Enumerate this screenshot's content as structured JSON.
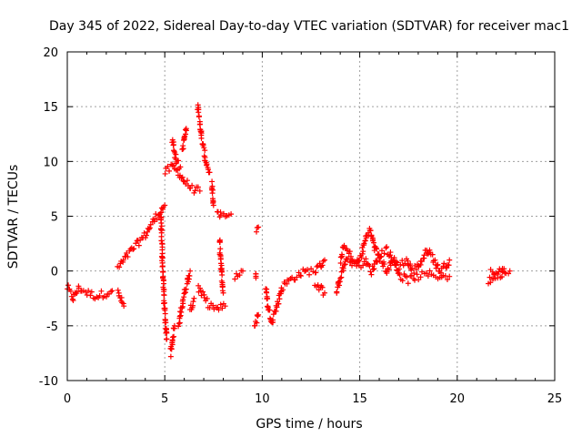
{
  "chart_data": {
    "type": "scatter",
    "title": "Day 345 of 2022, Sidereal Day-to-day VTEC variation (SDTVAR) for receiver mac1",
    "xlabel": "GPS time / hours",
    "ylabel": "SDTVAR / TECUs",
    "xlim": [
      0,
      25
    ],
    "ylim": [
      -10,
      20
    ],
    "xticks": [
      "0",
      "5",
      "10",
      "15",
      "20",
      "25"
    ],
    "yticks": [
      "-10",
      "-5",
      "0",
      "5",
      "10",
      "15",
      "20"
    ],
    "grid": true,
    "marker": "+",
    "color": "#ff0000",
    "series": [
      {
        "name": "SDTVAR",
        "segments": [
          [
            [
              0.0,
              -1.5
            ],
            [
              0.3,
              -2.5
            ],
            [
              0.6,
              -1.5
            ],
            [
              1.0,
              -2.0
            ],
            [
              1.5,
              -2.3
            ],
            [
              2.0,
              -2.0
            ],
            [
              2.3,
              -1.8
            ]
          ],
          [
            [
              2.6,
              -2.0
            ],
            [
              2.9,
              -3.2
            ]
          ],
          [
            [
              2.6,
              0.3
            ],
            [
              3.0,
              1.2
            ],
            [
              3.5,
              2.3
            ],
            [
              4.0,
              3.3
            ],
            [
              4.5,
              4.8
            ],
            [
              5.0,
              6.0
            ]
          ],
          [
            [
              5.0,
              9.0
            ],
            [
              5.4,
              9.5
            ],
            [
              5.7,
              9.0
            ],
            [
              6.0,
              8.2
            ],
            [
              6.4,
              7.5
            ],
            [
              6.8,
              7.3
            ]
          ],
          [
            [
              4.8,
              5.0
            ],
            [
              4.9,
              0.0
            ],
            [
              5.0,
              -4.0
            ],
            [
              5.1,
              -6.2
            ]
          ],
          [
            [
              5.3,
              -7.5
            ],
            [
              5.5,
              -5.0
            ]
          ],
          [
            [
              5.4,
              12.0
            ],
            [
              5.6,
              10.0
            ],
            [
              5.8,
              9.5
            ]
          ],
          [
            [
              5.9,
              11.0
            ],
            [
              6.1,
              13.0
            ]
          ],
          [
            [
              5.7,
              -5.0
            ],
            [
              6.0,
              -2.0
            ],
            [
              6.3,
              0.0
            ]
          ],
          [
            [
              6.3,
              -3.5
            ],
            [
              6.5,
              -2.5
            ]
          ],
          [
            [
              6.7,
              15.0
            ],
            [
              6.9,
              12.0
            ],
            [
              7.1,
              10.0
            ],
            [
              7.3,
              9.0
            ]
          ],
          [
            [
              6.7,
              -1.5
            ],
            [
              7.2,
              -3.0
            ],
            [
              7.7,
              -3.5
            ],
            [
              8.1,
              -3.2
            ]
          ],
          [
            [
              7.4,
              8.0
            ],
            [
              7.5,
              6.0
            ]
          ],
          [
            [
              7.7,
              5.5
            ],
            [
              7.9,
              5.0
            ],
            [
              8.4,
              5.2
            ]
          ],
          [
            [
              7.8,
              3.0
            ],
            [
              7.9,
              0.0
            ],
            [
              8.0,
              -2.0
            ]
          ],
          [
            [
              8.6,
              -0.5
            ],
            [
              9.0,
              0.0
            ]
          ],
          [
            [
              9.7,
              3.8
            ],
            [
              9.8,
              4.0
            ]
          ],
          [
            [
              9.6,
              -5.0
            ],
            [
              9.8,
              -4.0
            ]
          ],
          [
            [
              9.7,
              -0.5
            ]
          ],
          [
            [
              10.2,
              -1.5
            ],
            [
              10.3,
              -3.5
            ],
            [
              10.5,
              -4.5
            ],
            [
              10.8,
              -3.0
            ],
            [
              11.0,
              -1.5
            ],
            [
              11.3,
              -1.0
            ],
            [
              11.7,
              -0.5
            ],
            [
              12.0,
              -0.2
            ],
            [
              12.4,
              0.0
            ],
            [
              12.7,
              0.0
            ],
            [
              13.0,
              0.5
            ],
            [
              13.2,
              1.0
            ]
          ],
          [
            [
              12.7,
              -1.2
            ],
            [
              13.0,
              -1.5
            ],
            [
              13.2,
              -2.0
            ]
          ],
          [
            [
              13.8,
              -2.0
            ],
            [
              14.0,
              -0.5
            ],
            [
              14.3,
              1.0
            ],
            [
              14.6,
              0.5
            ]
          ],
          [
            [
              14.0,
              1.0
            ],
            [
              14.2,
              2.2
            ],
            [
              14.5,
              1.5
            ],
            [
              14.8,
              0.5
            ],
            [
              15.1,
              1.5
            ],
            [
              15.3,
              3.0
            ],
            [
              15.5,
              3.8
            ],
            [
              15.8,
              2.0
            ],
            [
              16.1,
              1.0
            ],
            [
              16.4,
              0.0
            ],
            [
              16.7,
              1.0
            ],
            [
              17.0,
              0.5
            ],
            [
              17.4,
              1.0
            ],
            [
              17.7,
              0.0
            ],
            [
              18.0,
              0.5
            ],
            [
              18.2,
              1.0
            ],
            [
              18.5,
              2.0
            ],
            [
              18.8,
              1.0
            ],
            [
              19.1,
              0.0
            ],
            [
              19.4,
              0.5
            ],
            [
              19.6,
              1.0
            ]
          ],
          [
            [
              14.9,
              0.5
            ],
            [
              15.3,
              0.8
            ],
            [
              15.6,
              0.0
            ],
            [
              16.0,
              1.5
            ],
            [
              16.4,
              2.0
            ],
            [
              16.8,
              0.8
            ],
            [
              17.1,
              -0.5
            ],
            [
              17.5,
              -0.8
            ],
            [
              18.0,
              -0.5
            ],
            [
              18.6,
              -0.3
            ],
            [
              19.2,
              -0.5
            ],
            [
              19.6,
              -0.5
            ]
          ],
          [
            [
              21.6,
              -1.0
            ],
            [
              21.9,
              -0.5
            ],
            [
              22.2,
              -0.3
            ],
            [
              22.5,
              0.0
            ],
            [
              22.7,
              0.0
            ]
          ],
          [
            [
              21.7,
              0.0
            ],
            [
              22.0,
              0.0
            ],
            [
              22.4,
              0.2
            ]
          ]
        ]
      }
    ]
  }
}
